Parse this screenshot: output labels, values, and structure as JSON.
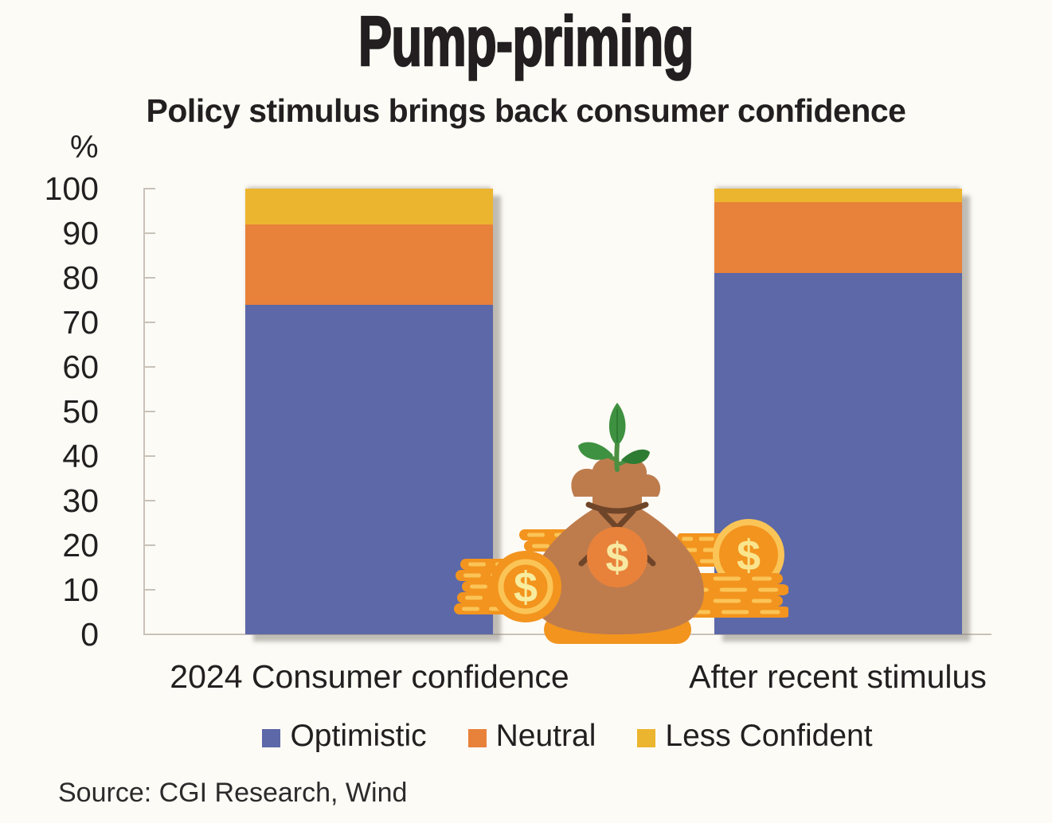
{
  "title": "Pump-priming",
  "subtitle": "Policy stimulus brings back consumer confidence",
  "source": "Source: CGI Research, Wind",
  "y_axis_unit": "%",
  "chart_data": {
    "type": "bar",
    "stacked": true,
    "title": "Pump-priming",
    "subtitle": "Policy stimulus brings back consumer confidence",
    "categories": [
      "2024 Consumer confidence",
      "After recent stimulus"
    ],
    "series": [
      {
        "name": "Optimistic",
        "color": "#5C68A8",
        "values": [
          74,
          81
        ]
      },
      {
        "name": "Neutral",
        "color": "#E8813A",
        "values": [
          18,
          16
        ]
      },
      {
        "name": "Less Confident",
        "color": "#ECB52F",
        "values": [
          8,
          3
        ]
      }
    ],
    "ylabel": "%",
    "xlabel": "",
    "ylim": [
      0,
      100
    ],
    "y_tick_step": 10,
    "grid": false,
    "legend_position": "bottom",
    "axis_color": "#C9C2B8"
  },
  "illustration": {
    "dollar_symbol": "$"
  }
}
